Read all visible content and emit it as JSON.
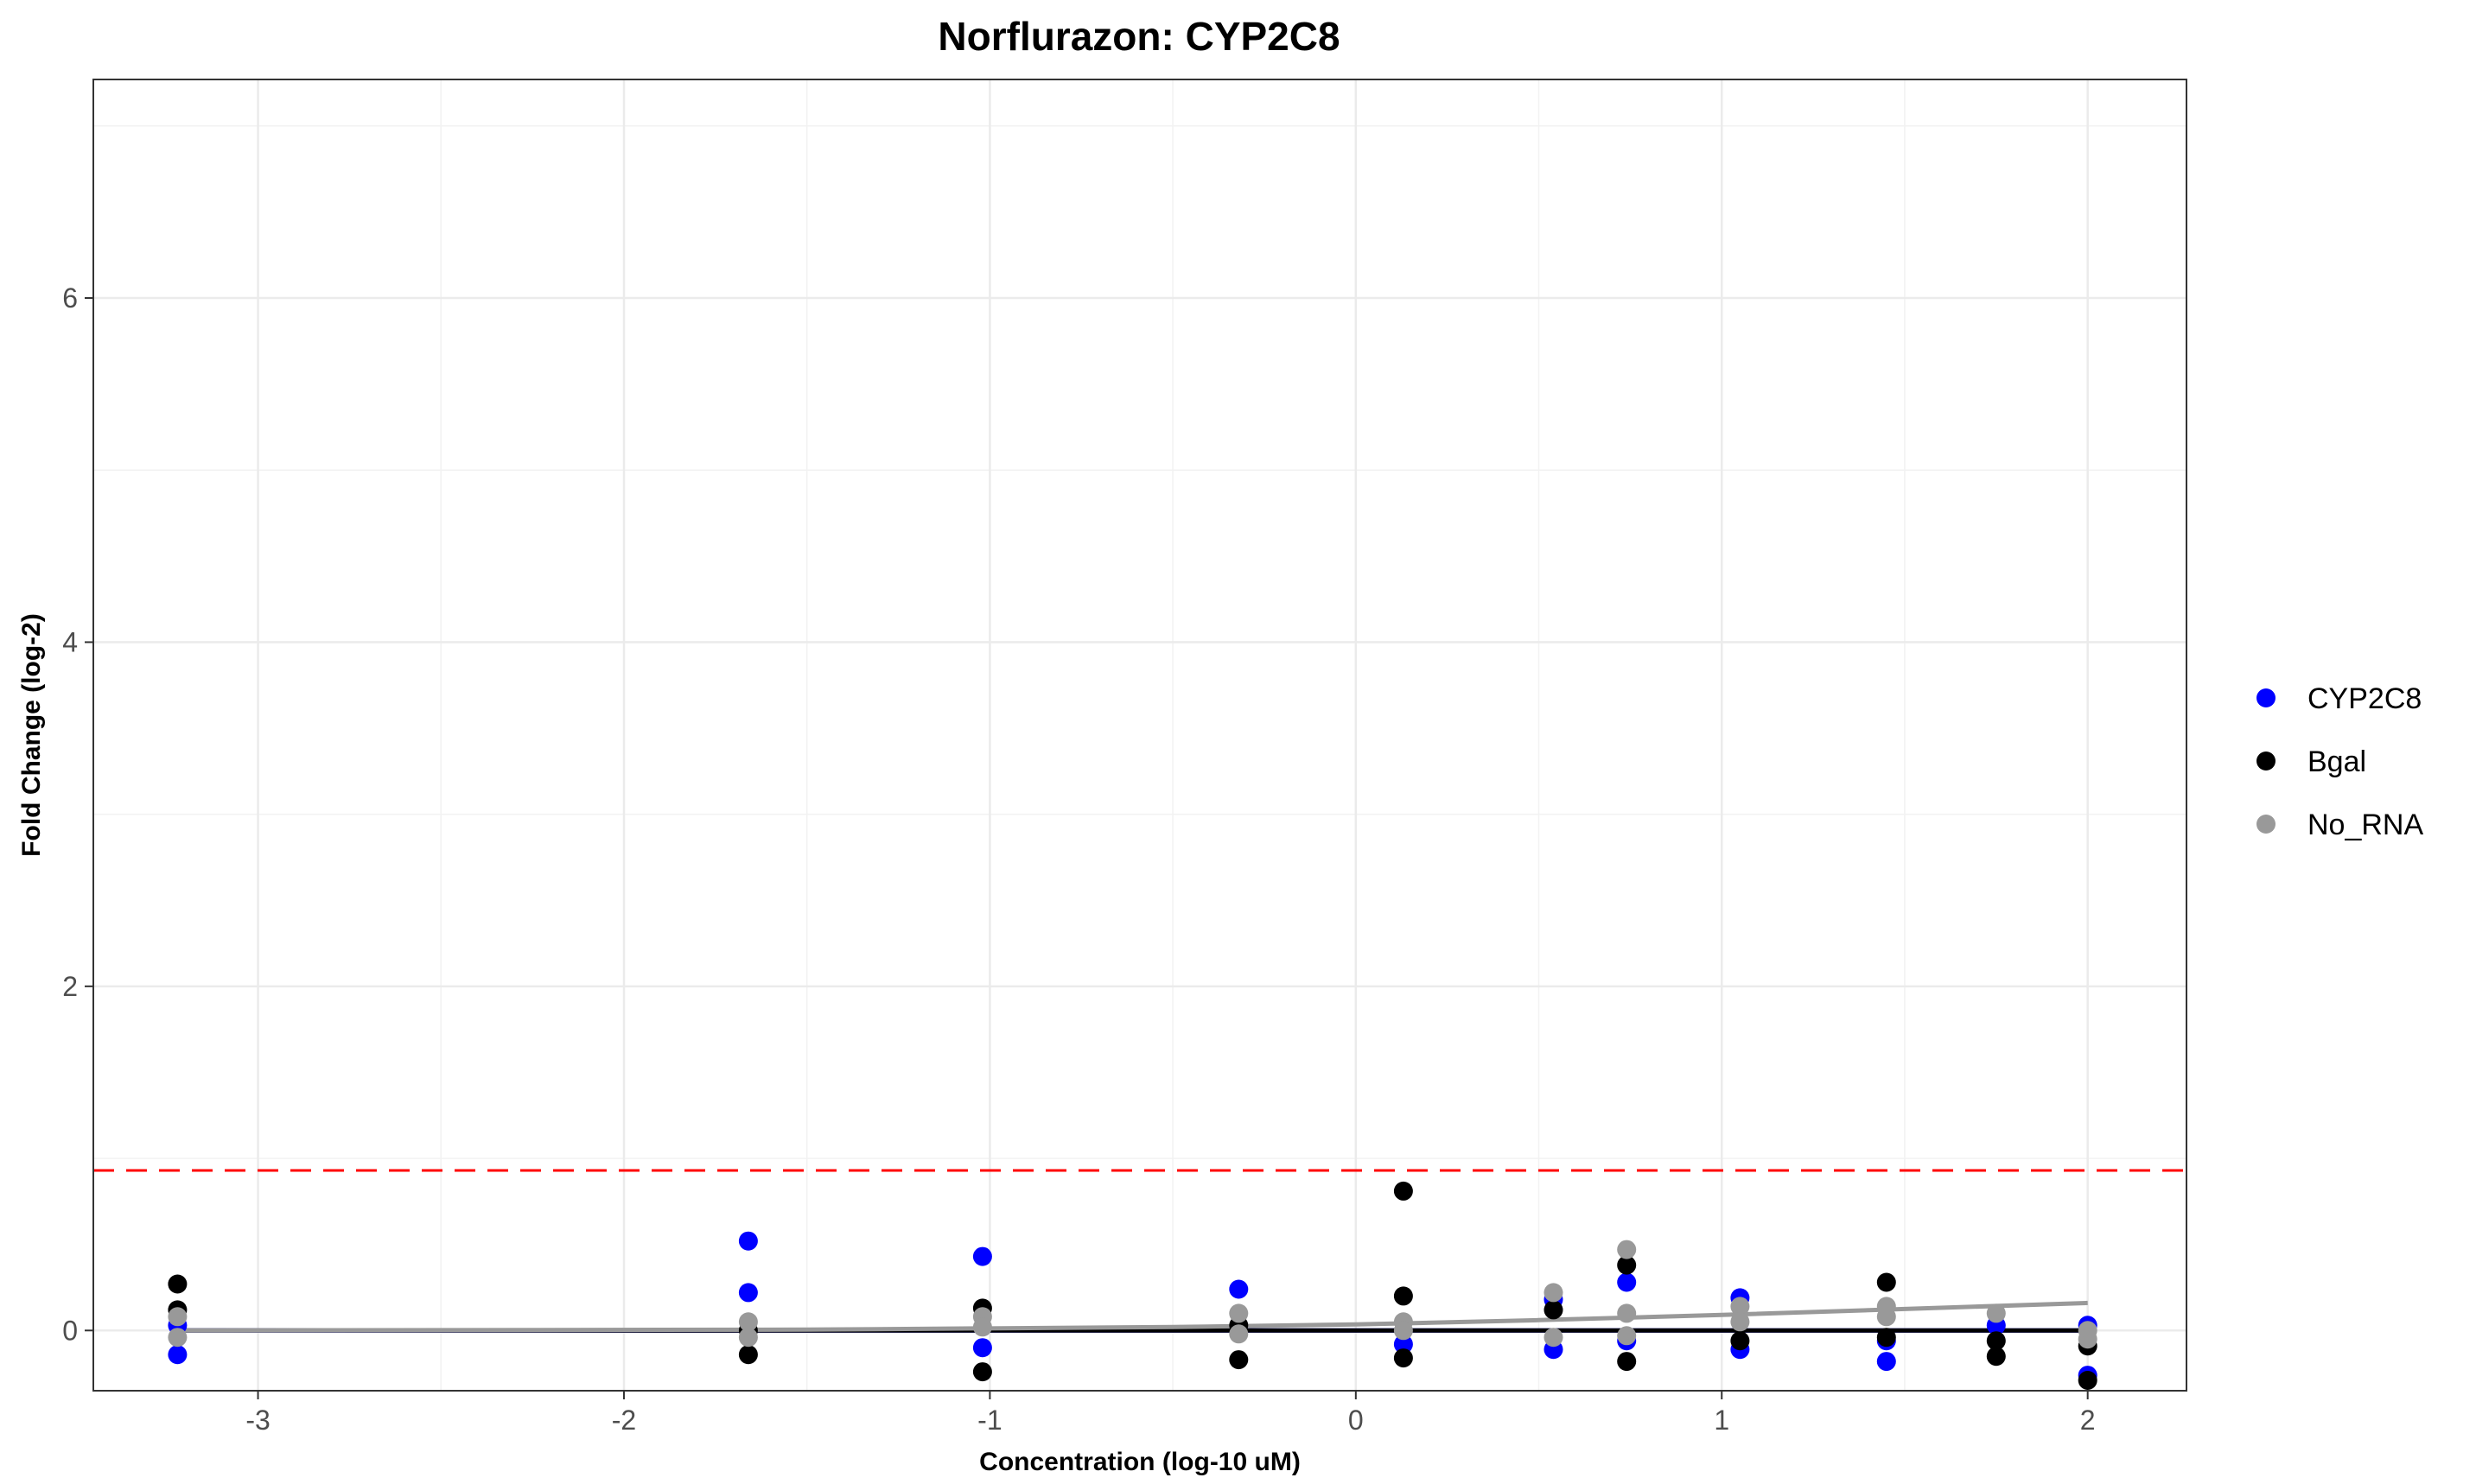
{
  "chart_data": {
    "type": "scatter",
    "title": "Norflurazon: CYP2C8",
    "xlabel": "Concentration (log-10 uM)",
    "ylabel": "Fold Change (log-2)",
    "xlim": [
      -3.45,
      2.27
    ],
    "ylim": [
      -0.35,
      7.27
    ],
    "x_ticks": [
      -3,
      -2,
      -1,
      0,
      1,
      2
    ],
    "x_tick_labels": [
      "-3",
      "-2",
      "-1",
      "0",
      "1",
      "2"
    ],
    "y_ticks": [
      0,
      2,
      4,
      6
    ],
    "y_tick_labels": [
      "0",
      "2",
      "4",
      "6"
    ],
    "grid": true,
    "legend_position": "right",
    "threshold_line": {
      "y": 0.93,
      "color": "#ff0000",
      "style": "dashed"
    },
    "series": [
      {
        "name": "CYP2C8",
        "color": "#0000ff",
        "points": [
          {
            "x": -3.22,
            "y": -0.14
          },
          {
            "x": -3.22,
            "y": 0.03
          },
          {
            "x": -1.66,
            "y": 0.52
          },
          {
            "x": -1.66,
            "y": 0.22
          },
          {
            "x": -1.02,
            "y": 0.43
          },
          {
            "x": -1.02,
            "y": -0.1
          },
          {
            "x": -0.32,
            "y": 0.24
          },
          {
            "x": 0.13,
            "y": -0.08
          },
          {
            "x": 0.54,
            "y": -0.11
          },
          {
            "x": 0.54,
            "y": 0.18
          },
          {
            "x": 0.74,
            "y": 0.28
          },
          {
            "x": 0.74,
            "y": -0.06
          },
          {
            "x": 1.05,
            "y": 0.19
          },
          {
            "x": 1.05,
            "y": -0.11
          },
          {
            "x": 1.45,
            "y": -0.18
          },
          {
            "x": 1.45,
            "y": -0.06
          },
          {
            "x": 1.75,
            "y": 0.03
          },
          {
            "x": 2.0,
            "y": 0.03
          },
          {
            "x": 2.0,
            "y": -0.26
          }
        ],
        "fit_line": [
          {
            "x": -3.22,
            "y": 0.0
          },
          {
            "x": 2.0,
            "y": 0.0
          }
        ]
      },
      {
        "name": "Bgal",
        "color": "#000000",
        "points": [
          {
            "x": -3.22,
            "y": 0.27
          },
          {
            "x": -3.22,
            "y": 0.12
          },
          {
            "x": -1.66,
            "y": -0.14
          },
          {
            "x": -1.66,
            "y": 0.0
          },
          {
            "x": -1.02,
            "y": -0.24
          },
          {
            "x": -1.02,
            "y": 0.13
          },
          {
            "x": -0.32,
            "y": -0.17
          },
          {
            "x": -0.32,
            "y": 0.03
          },
          {
            "x": 0.13,
            "y": 0.81
          },
          {
            "x": 0.13,
            "y": 0.2
          },
          {
            "x": 0.13,
            "y": -0.16
          },
          {
            "x": 0.54,
            "y": 0.12
          },
          {
            "x": 0.74,
            "y": 0.38
          },
          {
            "x": 0.74,
            "y": -0.18
          },
          {
            "x": 1.05,
            "y": -0.06
          },
          {
            "x": 1.45,
            "y": 0.28
          },
          {
            "x": 1.45,
            "y": -0.04
          },
          {
            "x": 1.75,
            "y": -0.15
          },
          {
            "x": 1.75,
            "y": -0.06
          },
          {
            "x": 2.0,
            "y": -0.29
          },
          {
            "x": 2.0,
            "y": -0.09
          }
        ],
        "fit_line": [
          {
            "x": -3.22,
            "y": 0.0
          },
          {
            "x": 2.0,
            "y": 0.0
          }
        ]
      },
      {
        "name": "No_RNA",
        "color": "#999999",
        "points": [
          {
            "x": -3.22,
            "y": 0.08
          },
          {
            "x": -3.22,
            "y": -0.04
          },
          {
            "x": -1.66,
            "y": 0.05
          },
          {
            "x": -1.66,
            "y": -0.04
          },
          {
            "x": -1.02,
            "y": 0.08
          },
          {
            "x": -1.02,
            "y": 0.02
          },
          {
            "x": -0.32,
            "y": 0.1
          },
          {
            "x": -0.32,
            "y": -0.02
          },
          {
            "x": 0.13,
            "y": 0.05
          },
          {
            "x": 0.13,
            "y": 0.0
          },
          {
            "x": 0.54,
            "y": 0.22
          },
          {
            "x": 0.54,
            "y": -0.04
          },
          {
            "x": 0.74,
            "y": 0.47
          },
          {
            "x": 0.74,
            "y": 0.1
          },
          {
            "x": 0.74,
            "y": -0.03
          },
          {
            "x": 1.05,
            "y": 0.14
          },
          {
            "x": 1.05,
            "y": 0.05
          },
          {
            "x": 1.45,
            "y": 0.14
          },
          {
            "x": 1.45,
            "y": 0.08
          },
          {
            "x": 1.75,
            "y": 0.1
          },
          {
            "x": 2.0,
            "y": 0.0
          },
          {
            "x": 2.0,
            "y": -0.05
          }
        ],
        "fit_line": [
          {
            "x": -3.22,
            "y": 0.0
          },
          {
            "x": -1.5,
            "y": 0.005
          },
          {
            "x": -0.5,
            "y": 0.02
          },
          {
            "x": 0.0,
            "y": 0.035
          },
          {
            "x": 0.5,
            "y": 0.06
          },
          {
            "x": 1.0,
            "y": 0.09
          },
          {
            "x": 1.5,
            "y": 0.125
          },
          {
            "x": 2.0,
            "y": 0.16
          }
        ]
      }
    ]
  }
}
